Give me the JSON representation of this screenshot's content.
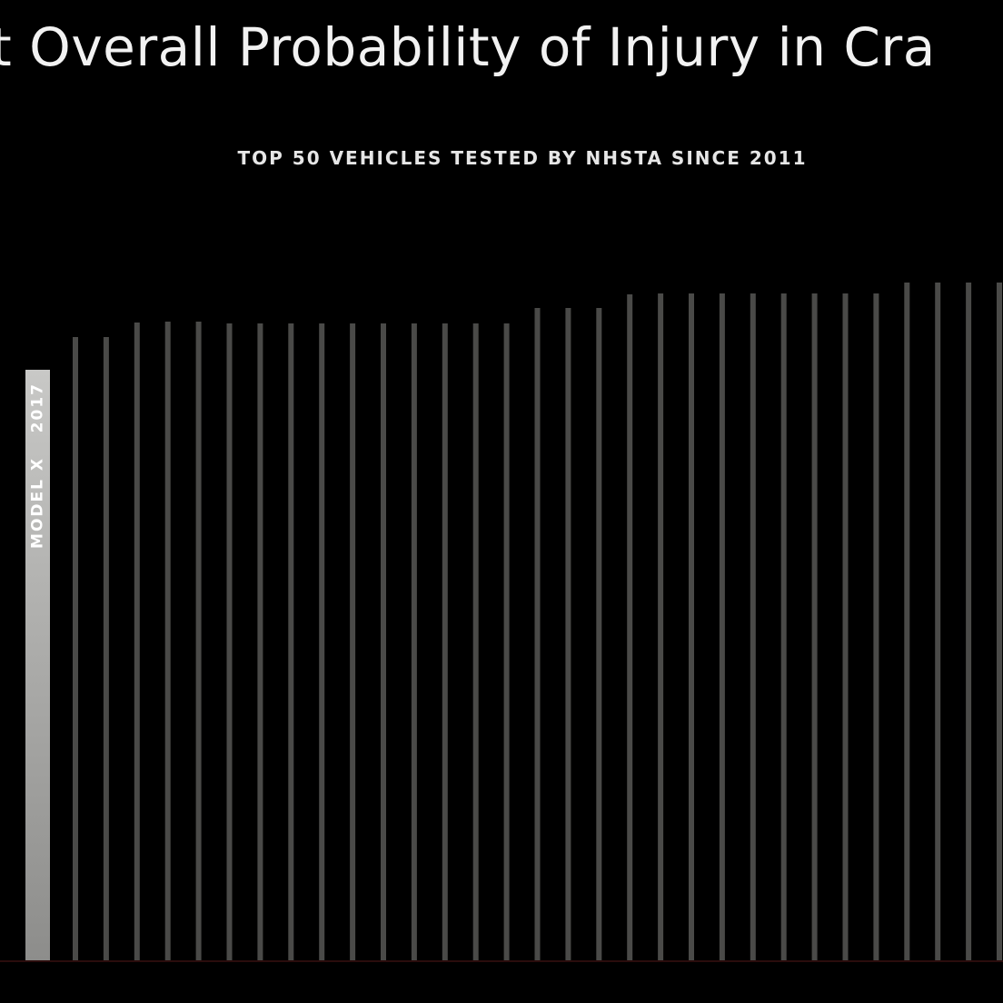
{
  "title": "t Overall Probability of Injury in Cra",
  "subtitle": "TOP 50 VEHICLES TESTED BY NHSTA SINCE 2011",
  "chart_data": {
    "type": "bar",
    "title": "t Overall Probability of Injury in Cra",
    "subtitle": "TOP 50 VEHICLES TESTED BY NHSTA SINCE 2011",
    "highlight": {
      "model": "MODEL X",
      "year": "2017",
      "value": 0.65
    },
    "values": [
      0.65,
      0.686,
      0.686,
      0.702,
      0.703,
      0.703,
      0.701,
      0.701,
      0.701,
      0.701,
      0.701,
      0.701,
      0.701,
      0.701,
      0.701,
      0.701,
      0.718,
      0.718,
      0.718,
      0.733,
      0.734,
      0.734,
      0.734,
      0.734,
      0.734,
      0.734,
      0.734,
      0.734,
      0.746,
      0.746,
      0.746,
      0.746
    ],
    "ylim": [
      0,
      1
    ],
    "grid": false,
    "legend": "none"
  },
  "colors": {
    "background": "#000000",
    "bar": "#4a4a48",
    "highlight_top": "#c8c8c6",
    "highlight_bottom": "#8d8d8b",
    "highlight_label": "#ffffff",
    "baseline": "#2a0c0c"
  }
}
